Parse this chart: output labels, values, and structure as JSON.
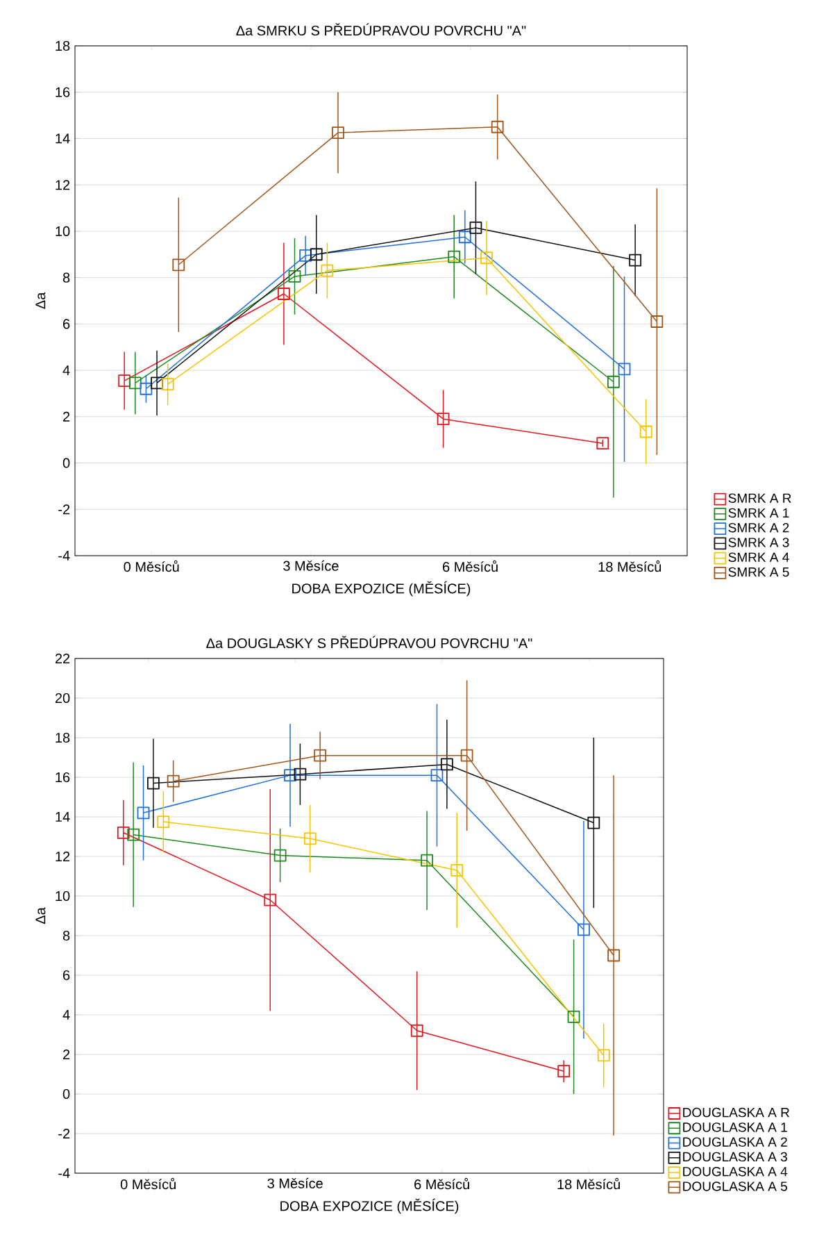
{
  "chart_data": [
    {
      "type": "line",
      "title": "Δa SMRKU S PŘEDÚPRAVOU POVRCHU \"A\"",
      "xlabel": "DOBA EXPOZICE (MĚSÍCE)",
      "ylabel": "Δa",
      "categories": [
        "0 Měsíců",
        "3 Měsíce",
        "6 Měsíců",
        "18 Měsíců"
      ],
      "ylim": [
        -4,
        18
      ],
      "yticks": [
        -4,
        -2,
        0,
        2,
        4,
        6,
        8,
        10,
        12,
        14,
        16,
        18
      ],
      "grid": "y",
      "legend": "bottom right",
      "marker": "square",
      "line_style": "solid",
      "series": [
        {
          "name": "SMRK A R",
          "color": "#e8141c",
          "values": [
            3.55,
            7.3,
            1.9,
            0.85
          ],
          "errors": [
            1.25,
            2.2,
            1.25,
            0.15
          ]
        },
        {
          "name": "SMRK A 1",
          "color": "#1e8a1e",
          "values": [
            3.45,
            8.05,
            8.9,
            3.5
          ],
          "errors": [
            1.35,
            1.65,
            1.8,
            5.0
          ]
        },
        {
          "name": "SMRK A 2",
          "color": "#1f6fe0",
          "values": [
            3.2,
            8.95,
            9.75,
            4.05
          ],
          "errors": [
            0.6,
            0.85,
            1.15,
            4.0
          ]
        },
        {
          "name": "SMRK A 3",
          "color": "#111111",
          "values": [
            3.45,
            9.0,
            10.15,
            8.75
          ],
          "errors": [
            1.4,
            1.7,
            2.0,
            1.55
          ]
        },
        {
          "name": "SMRK A 4",
          "color": "#f5c400",
          "values": [
            3.4,
            8.3,
            8.85,
            1.35
          ],
          "errors": [
            0.9,
            1.2,
            1.6,
            1.4
          ]
        },
        {
          "name": "SMRK A 5",
          "color": "#a0561a",
          "values": [
            8.55,
            14.25,
            14.5,
            6.1
          ],
          "errors": [
            2.9,
            1.75,
            1.4,
            5.75
          ]
        }
      ]
    },
    {
      "type": "line",
      "title": "Δa DOUGLASKY S PŘEDÚPRAVOU POVRCHU \"A\"",
      "xlabel": "DOBA EXPOZICE (MĚSÍCE)",
      "ylabel": "Δa",
      "categories": [
        "0 Měsíců",
        "3 Měsíce",
        "6 Měsíců",
        "18 Měsíců"
      ],
      "ylim": [
        -4,
        22
      ],
      "yticks": [
        -4,
        -2,
        0,
        2,
        4,
        6,
        8,
        10,
        12,
        14,
        16,
        18,
        20,
        22
      ],
      "grid": "y",
      "legend": "bottom right",
      "marker": "square",
      "line_style": "solid",
      "series": [
        {
          "name": "DOUGLASKA A R",
          "color": "#e8141c",
          "values": [
            13.2,
            9.8,
            3.2,
            1.15
          ],
          "errors": [
            1.65,
            5.6,
            3.0,
            0.55
          ]
        },
        {
          "name": "DOUGLASKA A 1",
          "color": "#1e8a1e",
          "values": [
            13.1,
            12.05,
            11.8,
            3.9
          ],
          "errors": [
            3.65,
            1.35,
            2.5,
            3.9
          ]
        },
        {
          "name": "DOUGLASKA A 2",
          "color": "#1f6fe0",
          "values": [
            14.2,
            16.1,
            16.1,
            8.3
          ],
          "errors": [
            2.4,
            2.6,
            3.6,
            5.5
          ]
        },
        {
          "name": "DOUGLASKA A 3",
          "color": "#111111",
          "values": [
            15.7,
            16.15,
            16.65,
            13.7
          ],
          "errors": [
            2.25,
            1.55,
            2.25,
            4.3
          ]
        },
        {
          "name": "DOUGLASKA A 4",
          "color": "#f5c400",
          "values": [
            13.75,
            12.9,
            11.3,
            1.95
          ],
          "errors": [
            1.55,
            1.7,
            2.9,
            1.6
          ]
        },
        {
          "name": "DOUGLASKA A 5",
          "color": "#a0561a",
          "values": [
            15.8,
            17.1,
            17.1,
            7.0
          ],
          "errors": [
            1.05,
            1.2,
            3.8,
            9.1
          ]
        }
      ]
    }
  ]
}
